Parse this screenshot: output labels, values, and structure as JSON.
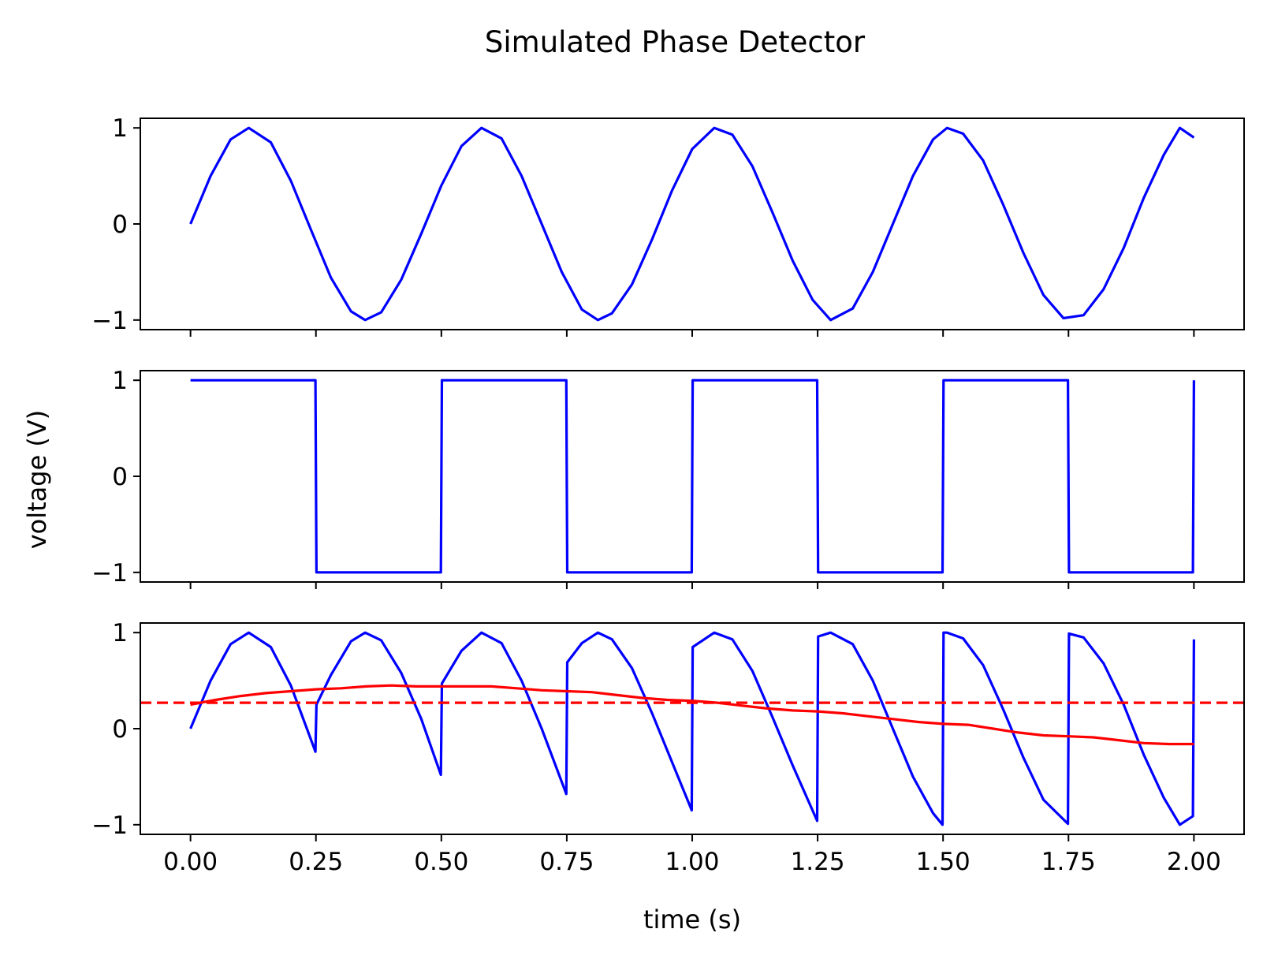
{
  "chart_data": {
    "type": "line",
    "title": "Simulated Phase Detector",
    "xlabel": "time (s)",
    "ylabel": "voltage (V)",
    "xlim": [
      -0.1,
      2.1
    ],
    "x_ticks": [
      "0.00",
      "0.25",
      "0.50",
      "0.75",
      "1.00",
      "1.25",
      "1.50",
      "1.75",
      "2.00"
    ],
    "x_tick_values": [
      0,
      0.25,
      0.5,
      0.75,
      1.0,
      1.25,
      1.5,
      1.75,
      2.0
    ],
    "grid": false,
    "panels": [
      {
        "ylim": [
          -1.1,
          1.1
        ],
        "y_ticks": [
          "−1",
          "0",
          "1"
        ],
        "y_tick_values": [
          -1,
          0,
          1
        ],
        "series": [
          {
            "color": "#0000ff",
            "style": "solid",
            "x": [
              0.0,
              0.04,
              0.08,
              0.116,
              0.16,
              0.2,
              0.24,
              0.28,
              0.32,
              0.348,
              0.38,
              0.42,
              0.46,
              0.5,
              0.54,
              0.58,
              0.62,
              0.66,
              0.7,
              0.74,
              0.78,
              0.812,
              0.84,
              0.88,
              0.92,
              0.96,
              1.0,
              1.044,
              1.08,
              1.12,
              1.16,
              1.2,
              1.24,
              1.276,
              1.32,
              1.36,
              1.4,
              1.44,
              1.48,
              1.508,
              1.54,
              1.58,
              1.62,
              1.66,
              1.7,
              1.74,
              1.78,
              1.82,
              1.86,
              1.9,
              1.94,
              1.972,
              2.0
            ],
            "y": [
              0.0,
              0.5,
              0.88,
              1.0,
              0.85,
              0.45,
              -0.06,
              -0.56,
              -0.91,
              -1.0,
              -0.92,
              -0.58,
              -0.1,
              0.4,
              0.81,
              1.0,
              0.89,
              0.5,
              0.0,
              -0.5,
              -0.89,
              -1.0,
              -0.93,
              -0.63,
              -0.16,
              0.35,
              0.78,
              1.0,
              0.93,
              0.6,
              0.12,
              -0.38,
              -0.79,
              -1.0,
              -0.88,
              -0.5,
              0.0,
              0.5,
              0.88,
              1.0,
              0.94,
              0.66,
              0.2,
              -0.3,
              -0.74,
              -0.98,
              -0.95,
              -0.68,
              -0.25,
              0.27,
              0.72,
              1.0,
              0.9
            ]
          }
        ]
      },
      {
        "ylim": [
          -1.1,
          1.1
        ],
        "y_ticks": [
          "−1",
          "0",
          "1"
        ],
        "y_tick_values": [
          -1,
          0,
          1
        ],
        "series": [
          {
            "color": "#0000ff",
            "style": "solid",
            "x": [
              0.0,
              0.249,
              0.251,
              0.499,
              0.501,
              0.749,
              0.751,
              0.999,
              1.001,
              1.249,
              1.251,
              1.499,
              1.501,
              1.749,
              1.751,
              1.998,
              2.0
            ],
            "y": [
              1,
              1,
              -1,
              -1,
              1,
              1,
              -1,
              -1,
              1,
              1,
              -1,
              -1,
              1,
              1,
              -1,
              -1,
              1
            ]
          }
        ]
      },
      {
        "ylim": [
          -1.1,
          1.1
        ],
        "y_ticks": [
          "−1",
          "0",
          "1"
        ],
        "y_tick_values": [
          -1,
          0,
          1
        ],
        "series": [
          {
            "color": "#0000ff",
            "style": "solid",
            "x": [
              0.0,
              0.04,
              0.08,
              0.116,
              0.16,
              0.2,
              0.249,
              0.251,
              0.28,
              0.32,
              0.348,
              0.38,
              0.42,
              0.46,
              0.499,
              0.501,
              0.54,
              0.58,
              0.62,
              0.66,
              0.7,
              0.749,
              0.751,
              0.78,
              0.812,
              0.84,
              0.88,
              0.92,
              0.96,
              0.999,
              1.001,
              1.044,
              1.08,
              1.12,
              1.16,
              1.2,
              1.249,
              1.251,
              1.276,
              1.32,
              1.36,
              1.4,
              1.44,
              1.48,
              1.499,
              1.501,
              1.508,
              1.54,
              1.58,
              1.62,
              1.66,
              1.7,
              1.749,
              1.751,
              1.78,
              1.82,
              1.86,
              1.9,
              1.94,
              1.972,
              1.998,
              2.0
            ],
            "y": [
              0.0,
              0.5,
              0.88,
              1.0,
              0.85,
              0.45,
              -0.24,
              0.25,
              0.56,
              0.91,
              1.0,
              0.92,
              0.58,
              0.1,
              -0.48,
              0.47,
              0.81,
              1.0,
              0.89,
              0.5,
              0.0,
              -0.68,
              0.69,
              0.89,
              1.0,
              0.93,
              0.63,
              0.16,
              -0.35,
              -0.85,
              0.85,
              1.0,
              0.93,
              0.6,
              0.12,
              -0.38,
              -0.96,
              0.96,
              1.0,
              0.88,
              0.5,
              0.0,
              -0.5,
              -0.88,
              -1.0,
              1.0,
              1.0,
              0.94,
              0.66,
              0.2,
              -0.3,
              -0.74,
              -0.99,
              0.99,
              0.95,
              0.68,
              0.25,
              -0.27,
              -0.72,
              -1.0,
              -0.91,
              0.93
            ]
          },
          {
            "color": "#ff0000",
            "style": "solid",
            "x": [
              0.0,
              0.05,
              0.1,
              0.15,
              0.2,
              0.25,
              0.3,
              0.35,
              0.4,
              0.45,
              0.5,
              0.55,
              0.6,
              0.65,
              0.7,
              0.75,
              0.8,
              0.85,
              0.9,
              0.95,
              1.0,
              1.05,
              1.1,
              1.15,
              1.2,
              1.25,
              1.3,
              1.35,
              1.4,
              1.45,
              1.5,
              1.55,
              1.6,
              1.65,
              1.7,
              1.75,
              1.8,
              1.85,
              1.9,
              1.95,
              2.0
            ],
            "y": [
              0.25,
              0.3,
              0.34,
              0.37,
              0.39,
              0.41,
              0.42,
              0.44,
              0.45,
              0.44,
              0.44,
              0.44,
              0.44,
              0.42,
              0.4,
              0.39,
              0.38,
              0.35,
              0.32,
              0.3,
              0.29,
              0.27,
              0.24,
              0.21,
              0.19,
              0.18,
              0.16,
              0.13,
              0.1,
              0.07,
              0.05,
              0.04,
              0.0,
              -0.04,
              -0.07,
              -0.08,
              -0.09,
              -0.12,
              -0.15,
              -0.16,
              -0.16
            ]
          },
          {
            "color": "#ff0000",
            "style": "dashed",
            "x": [
              -0.1,
              2.1
            ],
            "y": [
              0.27,
              0.27
            ]
          }
        ]
      }
    ]
  }
}
